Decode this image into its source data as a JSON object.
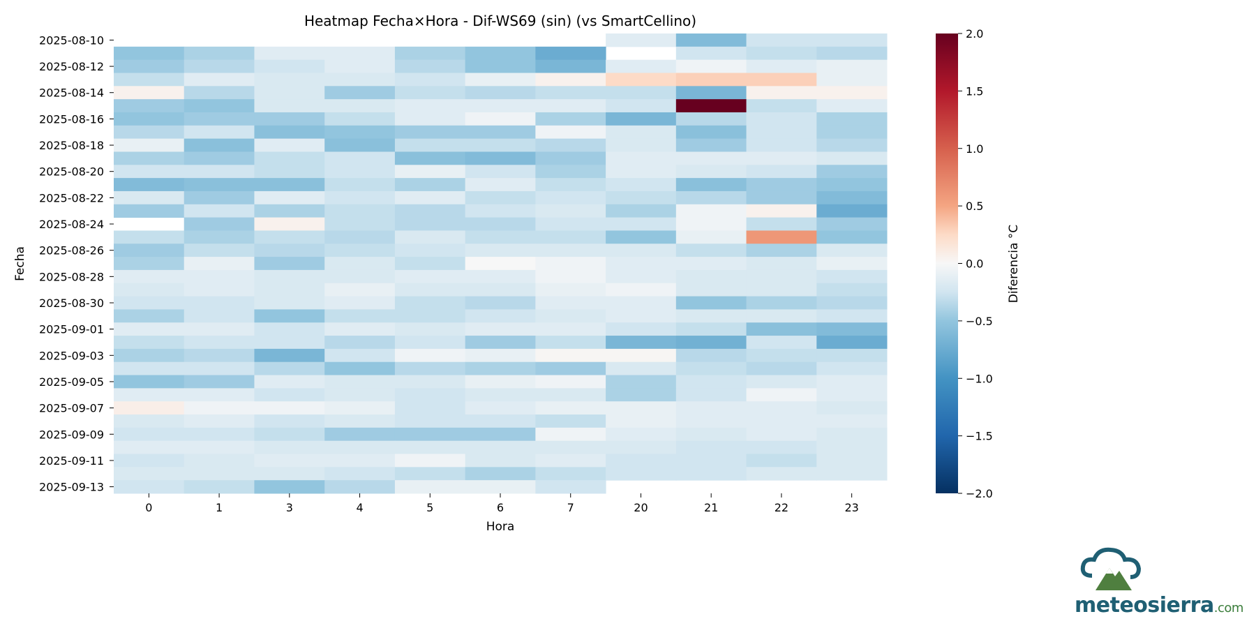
{
  "chart_data": {
    "type": "heatmap",
    "title": "Heatmap Fecha×Hora - Dif-WS69 (sin) (vs SmartCellino)",
    "xlabel": "Hora",
    "ylabel": "Fecha",
    "colorbar_label": "Diferencia °C",
    "colormap": "RdBu_r",
    "vmin": -2.0,
    "vmax": 2.0,
    "colorbar_ticks": [
      "2.0",
      "1.5",
      "1.0",
      "0.5",
      "0.0",
      "−0.5",
      "−1.0",
      "−1.5",
      "−2.0"
    ],
    "x": [
      "0",
      "1",
      "3",
      "4",
      "5",
      "6",
      "7",
      "20",
      "21",
      "22",
      "23"
    ],
    "y": [
      "2025-08-10",
      "2025-08-11",
      "2025-08-12",
      "2025-08-13",
      "2025-08-14",
      "2025-08-15",
      "2025-08-16",
      "2025-08-17",
      "2025-08-18",
      "2025-08-19",
      "2025-08-20",
      "2025-08-21",
      "2025-08-22",
      "2025-08-23",
      "2025-08-24",
      "2025-08-25",
      "2025-08-26",
      "2025-08-27",
      "2025-08-28",
      "2025-08-29",
      "2025-08-30",
      "2025-08-31",
      "2025-09-01",
      "2025-09-02",
      "2025-09-03",
      "2025-09-04",
      "2025-09-05",
      "2025-09-06",
      "2025-09-07",
      "2025-09-08",
      "2025-09-09",
      "2025-09-10",
      "2025-09-11",
      "2025-09-12",
      "2025-09-13"
    ],
    "y_tick_labels": [
      "2025-08-10",
      "2025-08-12",
      "2025-08-14",
      "2025-08-16",
      "2025-08-18",
      "2025-08-20",
      "2025-08-22",
      "2025-08-24",
      "2025-08-26",
      "2025-08-28",
      "2025-08-30",
      "2025-09-01",
      "2025-09-03",
      "2025-09-05",
      "2025-09-07",
      "2025-09-09",
      "2025-09-11",
      "2025-09-13"
    ],
    "values": [
      [
        null,
        null,
        null,
        null,
        null,
        null,
        null,
        -0.15,
        -0.6,
        -0.25,
        -0.25
      ],
      [
        -0.5,
        -0.4,
        -0.15,
        -0.15,
        -0.4,
        -0.5,
        -0.75,
        null,
        -0.25,
        -0.3,
        -0.35
      ],
      [
        -0.45,
        -0.35,
        -0.25,
        -0.15,
        -0.35,
        -0.5,
        -0.65,
        -0.15,
        -0.05,
        -0.15,
        -0.1
      ],
      [
        -0.3,
        -0.15,
        -0.2,
        -0.2,
        -0.25,
        -0.1,
        0.05,
        0.25,
        0.3,
        0.3,
        -0.1
      ],
      [
        0.05,
        -0.35,
        -0.2,
        -0.45,
        -0.3,
        -0.35,
        -0.3,
        -0.3,
        -0.65,
        0.05,
        0.05
      ],
      [
        -0.45,
        -0.5,
        -0.2,
        -0.2,
        -0.15,
        -0.15,
        -0.15,
        -0.25,
        2.0,
        -0.3,
        -0.15
      ],
      [
        -0.5,
        -0.45,
        -0.45,
        -0.3,
        -0.15,
        -0.05,
        -0.4,
        -0.65,
        -0.35,
        -0.25,
        -0.4
      ],
      [
        -0.35,
        -0.25,
        -0.55,
        -0.5,
        -0.45,
        -0.45,
        -0.05,
        -0.2,
        -0.55,
        -0.25,
        -0.4
      ],
      [
        -0.1,
        -0.55,
        -0.15,
        -0.55,
        -0.3,
        -0.3,
        -0.35,
        -0.2,
        -0.45,
        -0.25,
        -0.35
      ],
      [
        -0.4,
        -0.45,
        -0.3,
        -0.25,
        -0.55,
        -0.6,
        -0.45,
        -0.15,
        -0.15,
        -0.15,
        -0.2
      ],
      [
        -0.25,
        -0.25,
        -0.3,
        -0.25,
        -0.1,
        -0.25,
        -0.4,
        -0.15,
        -0.2,
        -0.25,
        -0.45
      ],
      [
        -0.6,
        -0.55,
        -0.55,
        -0.3,
        -0.4,
        -0.15,
        -0.3,
        -0.25,
        -0.55,
        -0.45,
        -0.5
      ],
      [
        -0.2,
        -0.45,
        -0.15,
        -0.25,
        -0.15,
        -0.3,
        -0.25,
        -0.3,
        -0.35,
        -0.45,
        -0.6
      ],
      [
        -0.45,
        -0.25,
        -0.4,
        -0.3,
        -0.35,
        -0.25,
        -0.2,
        -0.4,
        -0.05,
        0.05,
        -0.75
      ],
      [
        null,
        -0.45,
        0.05,
        -0.3,
        -0.35,
        -0.35,
        -0.25,
        -0.25,
        -0.05,
        -0.3,
        -0.45
      ],
      [
        -0.3,
        -0.4,
        -0.3,
        -0.35,
        -0.2,
        -0.3,
        -0.3,
        -0.5,
        -0.1,
        0.6,
        -0.5
      ],
      [
        -0.45,
        -0.3,
        -0.35,
        -0.3,
        -0.25,
        -0.2,
        -0.2,
        -0.2,
        -0.3,
        -0.4,
        -0.2
      ],
      [
        -0.4,
        -0.1,
        -0.45,
        -0.2,
        -0.3,
        0.0,
        -0.05,
        -0.15,
        -0.15,
        -0.2,
        -0.1
      ],
      [
        -0.15,
        -0.15,
        -0.2,
        -0.2,
        -0.15,
        -0.15,
        -0.05,
        -0.15,
        -0.2,
        -0.2,
        -0.25
      ],
      [
        -0.2,
        -0.15,
        -0.2,
        -0.1,
        -0.2,
        -0.2,
        -0.1,
        -0.05,
        -0.2,
        -0.2,
        -0.3
      ],
      [
        -0.25,
        -0.25,
        -0.2,
        -0.15,
        -0.3,
        -0.35,
        -0.15,
        -0.15,
        -0.5,
        -0.4,
        -0.35
      ],
      [
        -0.4,
        -0.25,
        -0.5,
        -0.3,
        -0.3,
        -0.25,
        -0.2,
        -0.15,
        -0.2,
        -0.2,
        -0.25
      ],
      [
        -0.15,
        -0.15,
        -0.25,
        -0.15,
        -0.2,
        -0.15,
        -0.15,
        -0.25,
        -0.3,
        -0.55,
        -0.6
      ],
      [
        -0.3,
        -0.25,
        -0.25,
        -0.35,
        -0.25,
        -0.45,
        -0.3,
        -0.65,
        -0.7,
        -0.25,
        -0.75
      ],
      [
        -0.4,
        -0.35,
        -0.65,
        -0.25,
        -0.05,
        -0.1,
        0.02,
        0.02,
        -0.35,
        -0.3,
        -0.3
      ],
      [
        -0.25,
        -0.25,
        -0.35,
        -0.5,
        -0.35,
        -0.4,
        -0.45,
        -0.2,
        -0.3,
        -0.35,
        -0.25
      ],
      [
        -0.5,
        -0.45,
        -0.15,
        -0.2,
        -0.2,
        -0.1,
        -0.05,
        -0.4,
        -0.25,
        -0.2,
        -0.15
      ],
      [
        -0.15,
        -0.15,
        -0.25,
        -0.2,
        -0.25,
        -0.2,
        -0.2,
        -0.4,
        -0.25,
        -0.05,
        -0.15
      ],
      [
        0.08,
        -0.05,
        -0.05,
        -0.1,
        -0.25,
        -0.15,
        -0.1,
        -0.1,
        -0.15,
        -0.15,
        -0.2
      ],
      [
        -0.2,
        -0.15,
        -0.25,
        -0.2,
        -0.25,
        -0.25,
        -0.3,
        -0.1,
        -0.15,
        -0.15,
        -0.15
      ],
      [
        -0.25,
        -0.25,
        -0.3,
        -0.45,
        -0.45,
        -0.45,
        -0.05,
        -0.15,
        -0.2,
        -0.15,
        -0.2
      ],
      [
        -0.15,
        -0.15,
        -0.2,
        -0.2,
        -0.2,
        -0.2,
        -0.2,
        -0.2,
        -0.25,
        -0.25,
        -0.2
      ],
      [
        -0.25,
        -0.2,
        -0.15,
        -0.15,
        -0.05,
        -0.2,
        -0.15,
        -0.25,
        -0.25,
        -0.3,
        -0.2
      ],
      [
        -0.2,
        -0.2,
        -0.2,
        -0.25,
        -0.3,
        -0.4,
        -0.3,
        -0.25,
        -0.25,
        -0.2,
        -0.2
      ],
      [
        -0.25,
        -0.3,
        -0.5,
        -0.35,
        -0.1,
        -0.1,
        -0.25,
        null,
        null,
        null,
        null
      ]
    ]
  },
  "logo": {
    "text": "meteosierra",
    "suffix": ".com"
  }
}
